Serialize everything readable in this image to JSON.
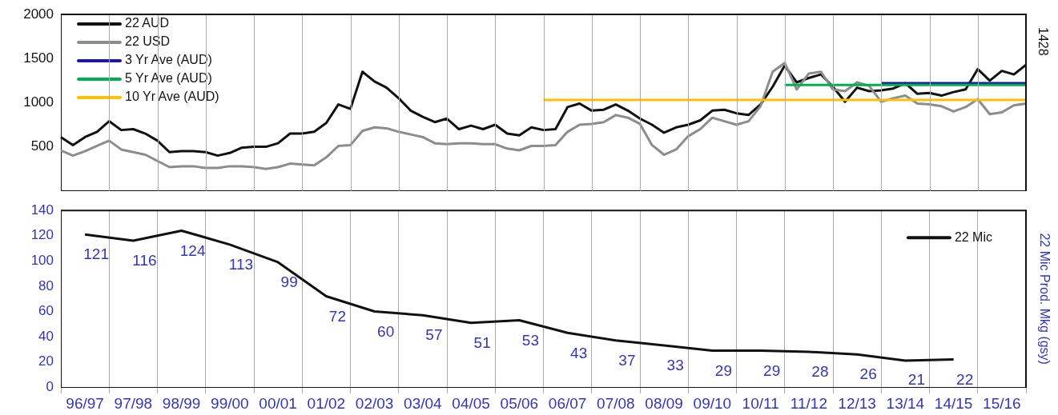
{
  "chart_data": [
    {
      "type": "line",
      "categories": [
        null,
        null,
        null,
        null,
        null,
        null,
        null,
        null,
        null,
        null,
        null,
        null,
        null,
        null,
        null,
        null,
        null,
        null,
        null,
        null,
        null,
        null,
        null,
        null,
        null,
        null,
        null,
        null,
        null,
        null,
        null,
        null,
        null,
        null,
        null,
        null,
        null,
        null,
        null,
        null,
        null,
        null,
        null,
        null,
        null,
        null,
        null,
        null,
        null,
        null,
        null,
        null,
        null,
        null,
        null,
        null,
        null,
        null,
        null,
        null,
        null,
        null,
        null,
        null,
        null,
        null,
        null,
        null,
        null,
        null,
        null,
        null,
        null,
        null,
        null,
        null,
        null,
        null,
        null,
        null,
        null
      ],
      "ylim": [
        0,
        2000
      ],
      "yticks": [
        500,
        1000,
        1500,
        2000
      ],
      "tick_labels": "y",
      "grid": "x",
      "legend": "top left",
      "annotations": [
        "1428"
      ],
      "series": [
        {
          "name": "22 AUD",
          "color": "#111111",
          "values": [
            610,
            520,
            610,
            670,
            790,
            690,
            700,
            650,
            570,
            440,
            450,
            450,
            440,
            400,
            430,
            490,
            500,
            500,
            540,
            650,
            650,
            670,
            770,
            980,
            930,
            1350,
            1240,
            1170,
            1050,
            910,
            840,
            780,
            820,
            700,
            740,
            700,
            750,
            650,
            630,
            720,
            690,
            700,
            950,
            990,
            910,
            920,
            980,
            910,
            820,
            750,
            660,
            720,
            750,
            800,
            910,
            920,
            880,
            860,
            980,
            1180,
            1420,
            1230,
            1280,
            1320,
            1180,
            1010,
            1170,
            1130,
            1140,
            1160,
            1220,
            1100,
            1110,
            1080,
            1120,
            1150,
            1380,
            1250,
            1360,
            1320,
            1428
          ]
        },
        {
          "name": "22 USD",
          "color": "#8c8c8c",
          "values": [
            460,
            400,
            450,
            510,
            570,
            470,
            440,
            410,
            340,
            270,
            280,
            280,
            260,
            260,
            280,
            280,
            270,
            250,
            270,
            310,
            300,
            290,
            380,
            510,
            520,
            680,
            720,
            710,
            670,
            640,
            610,
            540,
            530,
            540,
            540,
            530,
            530,
            480,
            460,
            510,
            510,
            520,
            670,
            750,
            760,
            780,
            860,
            830,
            760,
            520,
            410,
            470,
            620,
            700,
            830,
            790,
            750,
            790,
            960,
            1350,
            1450,
            1150,
            1330,
            1350,
            1150,
            1130,
            1230,
            1190,
            1010,
            1050,
            1080,
            990,
            980,
            960,
            900,
            950,
            1040,
            870,
            890,
            970,
            990
          ]
        },
        {
          "name": "3 Yr Ave (AUD)",
          "color": "#1a1aa0",
          "values": [
            null,
            null,
            null,
            null,
            null,
            null,
            null,
            null,
            null,
            null,
            null,
            null,
            null,
            null,
            null,
            null,
            null,
            null,
            null,
            null,
            null,
            null,
            null,
            null,
            null,
            null,
            null,
            null,
            null,
            null,
            null,
            null,
            null,
            null,
            null,
            null,
            null,
            null,
            null,
            null,
            null,
            null,
            null,
            null,
            null,
            null,
            null,
            null,
            null,
            null,
            null,
            null,
            null,
            null,
            null,
            null,
            null,
            null,
            null,
            null,
            null,
            null,
            null,
            null,
            null,
            null,
            null,
            null,
            1220,
            1220,
            1220,
            1220,
            1220,
            1220,
            1220,
            1220,
            1220,
            1220,
            1220,
            1220,
            1220
          ]
        },
        {
          "name": "5 Yr Ave (AUD)",
          "color": "#00b050",
          "values": [
            null,
            null,
            null,
            null,
            null,
            null,
            null,
            null,
            null,
            null,
            null,
            null,
            null,
            null,
            null,
            null,
            null,
            null,
            null,
            null,
            null,
            null,
            null,
            null,
            null,
            null,
            null,
            null,
            null,
            null,
            null,
            null,
            null,
            null,
            null,
            null,
            null,
            null,
            null,
            null,
            null,
            null,
            null,
            null,
            null,
            null,
            null,
            null,
            null,
            null,
            null,
            null,
            null,
            null,
            null,
            null,
            null,
            null,
            null,
            null,
            1200,
            1200,
            1200,
            1200,
            1200,
            1200,
            1200,
            1200,
            1200,
            1200,
            1200,
            1200,
            1200,
            1200,
            1200,
            1200,
            1200,
            1200,
            1200,
            1200,
            1200
          ]
        },
        {
          "name": "10 Yr Ave (AUD)",
          "color": "#ffc000",
          "values": [
            null,
            null,
            null,
            null,
            null,
            null,
            null,
            null,
            null,
            null,
            null,
            null,
            null,
            null,
            null,
            null,
            null,
            null,
            null,
            null,
            null,
            null,
            null,
            null,
            null,
            null,
            null,
            null,
            null,
            null,
            null,
            null,
            null,
            null,
            null,
            null,
            null,
            null,
            null,
            null,
            1030,
            1030,
            1030,
            1030,
            1030,
            1030,
            1030,
            1030,
            1030,
            1030,
            1030,
            1030,
            1030,
            1030,
            1030,
            1030,
            1030,
            1030,
            1030,
            1030,
            1030,
            1030,
            1030,
            1030,
            1030,
            1030,
            1030,
            1030,
            1030,
            1030,
            1030,
            1030,
            1030,
            1030,
            1030,
            1030,
            1030,
            1030,
            1030,
            1030,
            1030
          ]
        }
      ]
    },
    {
      "type": "line",
      "categories": [
        "96/97",
        "97/98",
        "98/99",
        "99/00",
        "00/01",
        "01/02",
        "02/03",
        "03/04",
        "04/05",
        "05/06",
        "06/07",
        "07/08",
        "08/09",
        "09/10",
        "10/11",
        "11/12",
        "12/13",
        "13/14",
        "14/15",
        "15/16"
      ],
      "ylim": [
        0,
        140
      ],
      "yticks": [
        0,
        20,
        40,
        60,
        80,
        100,
        120,
        140
      ],
      "ylabel": "22 Mic Prod. Mkg (gsy)",
      "grid": "x",
      "legend": "top right",
      "data_labels": true,
      "series": [
        {
          "name": "22 Mic",
          "color": "#111111",
          "values": [
            121,
            116,
            124,
            113,
            99,
            72,
            60,
            57,
            51,
            53,
            43,
            37,
            33,
            29,
            29,
            28,
            26,
            21,
            22,
            null
          ]
        }
      ]
    }
  ]
}
